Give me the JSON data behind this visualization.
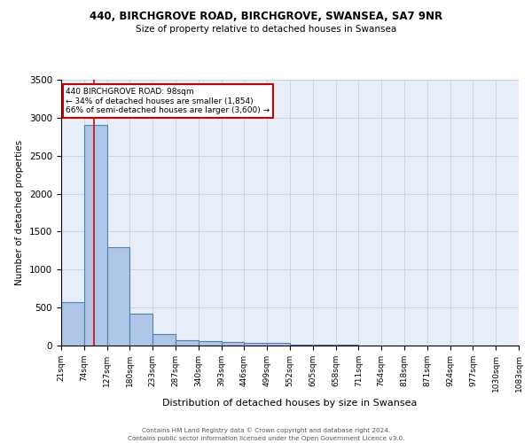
{
  "title1": "440, BIRCHGROVE ROAD, BIRCHGROVE, SWANSEA, SA7 9NR",
  "title2": "Size of property relative to detached houses in Swansea",
  "xlabel": "Distribution of detached houses by size in Swansea",
  "ylabel": "Number of detached properties",
  "bin_labels": [
    "21sqm",
    "74sqm",
    "127sqm",
    "180sqm",
    "233sqm",
    "287sqm",
    "340sqm",
    "393sqm",
    "446sqm",
    "499sqm",
    "552sqm",
    "605sqm",
    "658sqm",
    "711sqm",
    "764sqm",
    "818sqm",
    "871sqm",
    "924sqm",
    "977sqm",
    "1030sqm",
    "1083sqm"
  ],
  "bin_edges": [
    21,
    74,
    127,
    180,
    233,
    287,
    340,
    393,
    446,
    499,
    552,
    605,
    658,
    711,
    764,
    818,
    871,
    924,
    977,
    1030,
    1083
  ],
  "bar_heights": [
    570,
    2900,
    1300,
    420,
    155,
    70,
    55,
    45,
    35,
    30,
    15,
    10,
    8,
    5,
    3,
    2,
    2,
    1,
    1,
    1
  ],
  "bar_color": "#aec6e8",
  "bar_edge_color": "#5080b0",
  "bar_edge_width": 0.8,
  "grid_color": "#c8d4e8",
  "bg_color": "#e8eef8",
  "property_size": 98,
  "red_line_color": "#dd0000",
  "annotation_text": "440 BIRCHGROVE ROAD: 98sqm\n← 34% of detached houses are smaller (1,854)\n66% of semi-detached houses are larger (3,600) →",
  "annotation_box_color": "#ffffff",
  "annotation_box_edge": "#cc0000",
  "ylim": [
    0,
    3500
  ],
  "yticks": [
    0,
    500,
    1000,
    1500,
    2000,
    2500,
    3000,
    3500
  ],
  "footnote": "Contains HM Land Registry data © Crown copyright and database right 2024.\nContains public sector information licensed under the Open Government Licence v3.0."
}
